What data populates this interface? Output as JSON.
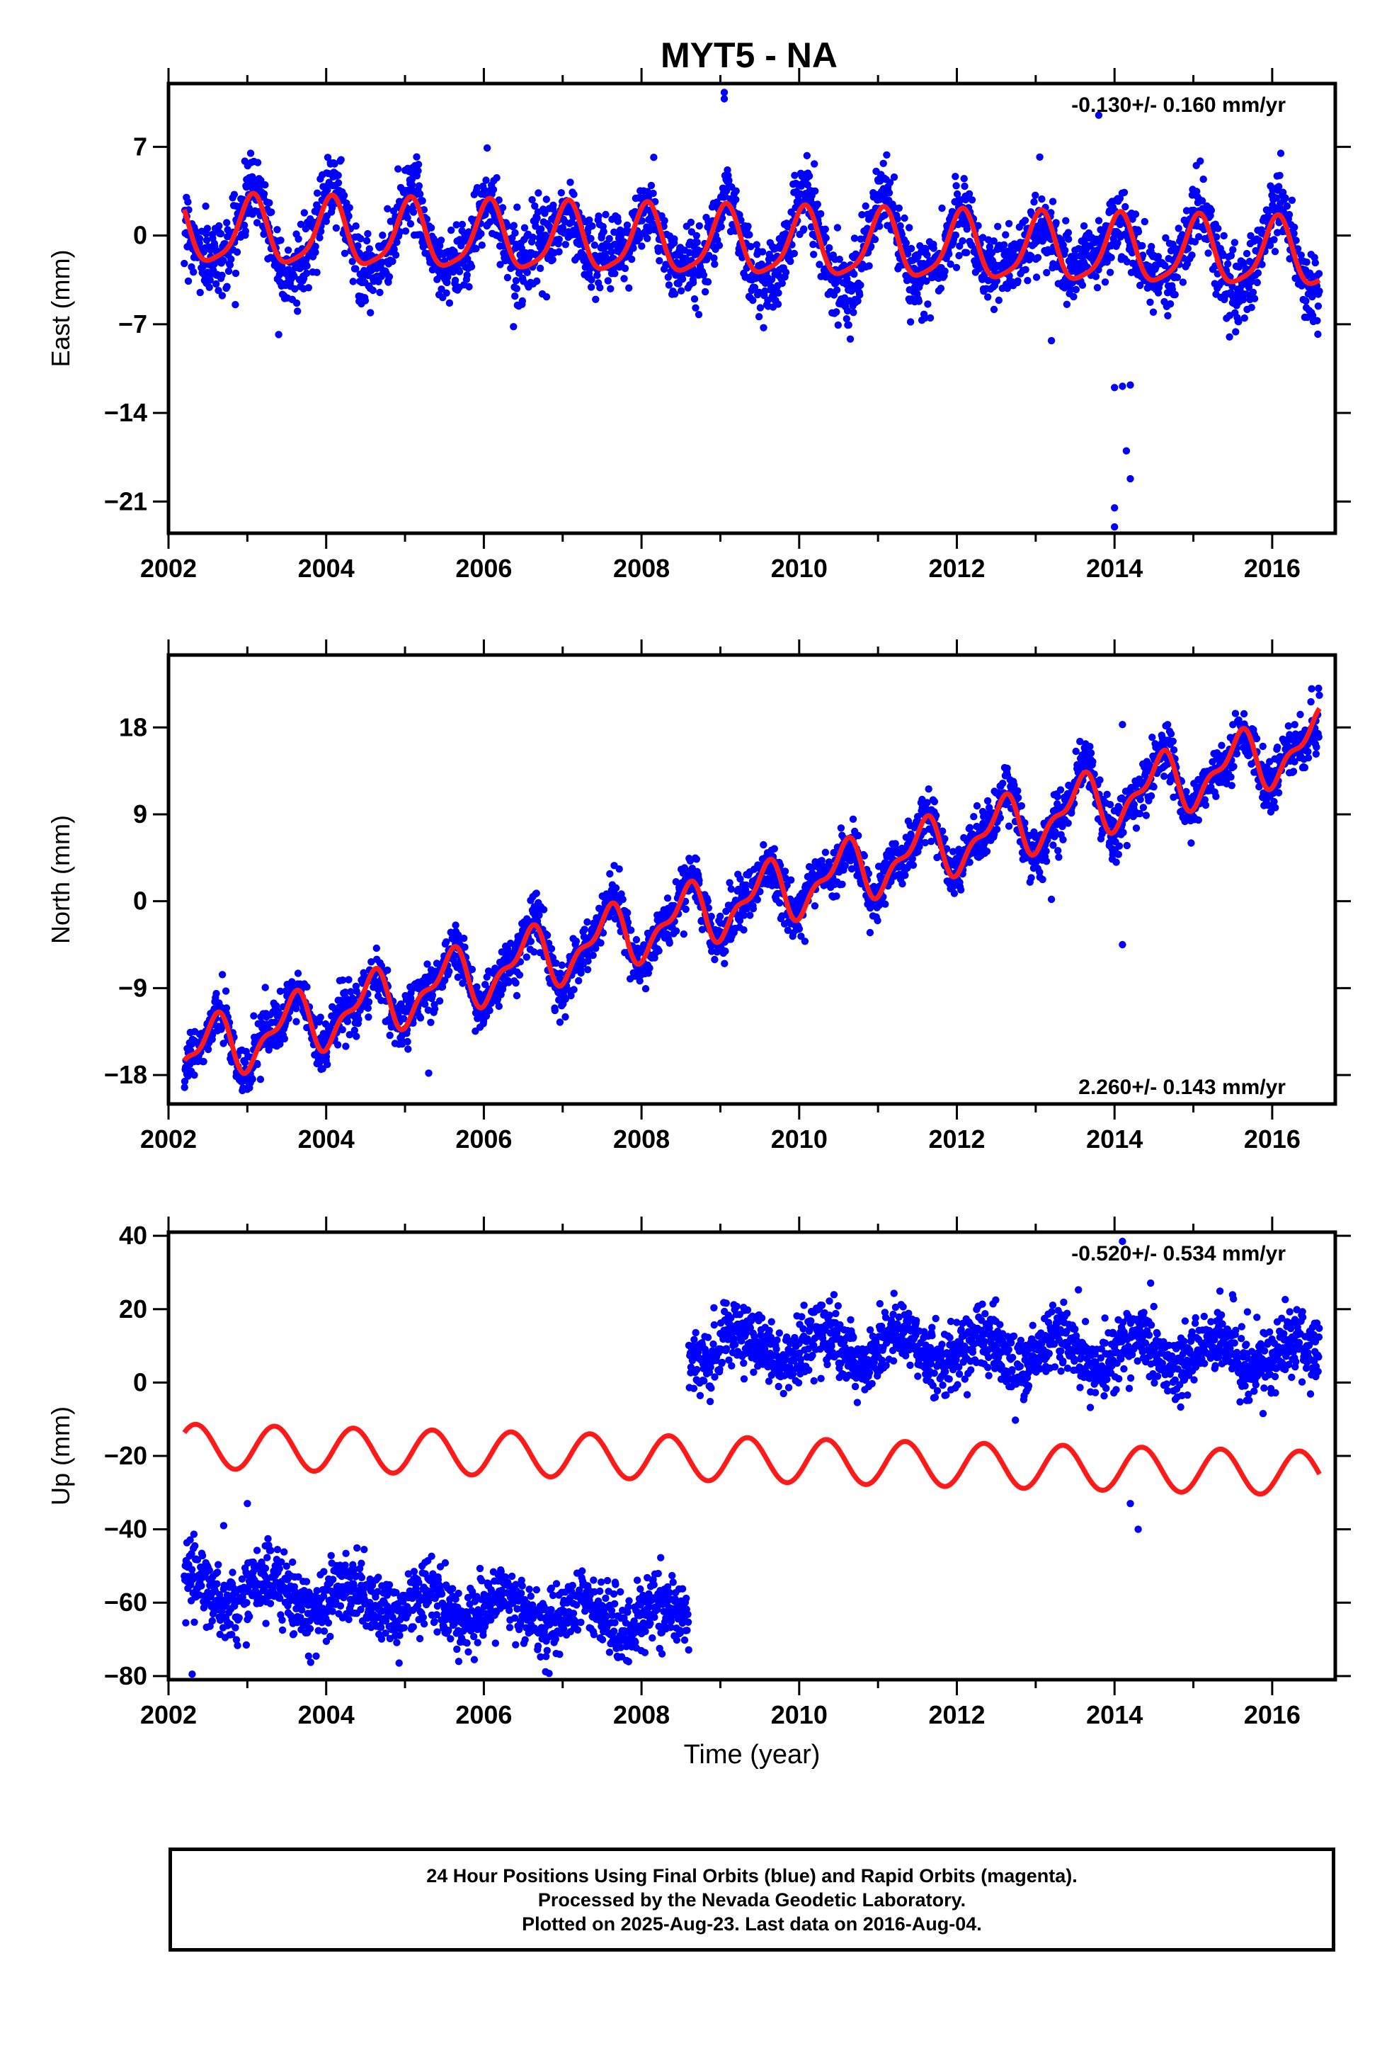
{
  "title": "MYT5 - NA",
  "footer": {
    "line1": "24 Hour Positions Using Final Orbits (blue) and Rapid Orbits (magenta).",
    "line2": "Processed by the Nevada Geodetic Laboratory.",
    "line3": "Plotted on 2025-Aug-23. Last data on 2016-Aug-04."
  },
  "colors": {
    "data": "#0000ff",
    "model": "#ff1a1a",
    "frame": "#000000"
  },
  "chart_data": [
    {
      "type": "scatter",
      "ylabel": "East (mm)",
      "xlabel": "",
      "rate_text": "-0.130+/- 0.160 mm/yr",
      "xlim": [
        2002.0,
        2016.8
      ],
      "ylim": [
        -23.5,
        12.0
      ],
      "yticks": [
        7,
        0,
        -7,
        -14,
        -21
      ],
      "ytick_labels": [
        "7",
        "0",
        "−7",
        "−14",
        "−21"
      ],
      "xticks": [
        2002,
        2004,
        2006,
        2008,
        2010,
        2012,
        2014,
        2016
      ],
      "xtick_labels": [
        "2002",
        "2004",
        "2006",
        "2008",
        "2010",
        "2012",
        "2014",
        "2016"
      ],
      "data_range": [
        2002.2,
        2016.6
      ],
      "model": {
        "offset": 0.3,
        "rate": -0.13,
        "amp_annual": 2.6,
        "phase_annual": 1.2,
        "amp_semi": 0.6,
        "phase_semi": 0.4,
        "amp_growth": 0.08
      },
      "scatter": {
        "noise": 1.4,
        "extra_amp": 1.2
      },
      "outliers": [
        [
          2009.05,
          10.8
        ],
        [
          2009.05,
          11.3
        ],
        [
          2013.8,
          9.5
        ],
        [
          2013.2,
          -8.3
        ],
        [
          2014.0,
          -12.0
        ],
        [
          2014.1,
          -11.9
        ],
        [
          2014.2,
          -11.8
        ],
        [
          2014.15,
          -17.0
        ],
        [
          2014.2,
          -19.2
        ],
        [
          2014.0,
          -21.5
        ],
        [
          2014.0,
          -23.0
        ]
      ],
      "series": [
        {
          "name": "Final Orbits",
          "role": "data"
        },
        {
          "name": "Model",
          "role": "model"
        }
      ]
    },
    {
      "type": "scatter",
      "ylabel": "North (mm)",
      "xlabel": "",
      "rate_text": "2.260+/- 0.143 mm/yr",
      "xlim": [
        2002.0,
        2016.8
      ],
      "ylim": [
        -21.0,
        25.5
      ],
      "yticks": [
        18,
        9,
        0,
        -9,
        -18
      ],
      "ytick_labels": [
        "18",
        "9",
        "0",
        "−9",
        "−18"
      ],
      "xticks": [
        2002,
        2004,
        2006,
        2008,
        2010,
        2012,
        2014,
        2016
      ],
      "xtick_labels": [
        "2002",
        "2004",
        "2006",
        "2008",
        "2010",
        "2012",
        "2014",
        "2016"
      ],
      "data_range": [
        2002.2,
        2016.6
      ],
      "model": {
        "offset": -16.5,
        "rate": 2.26,
        "amp_annual": 2.8,
        "phase_annual": -1.9,
        "amp_semi": 1.3,
        "phase_semi": -0.6,
        "amp_growth": 0.05
      },
      "scatter": {
        "noise": 1.3,
        "extra_amp": 0.8
      },
      "outliers": [
        [
          2005.3,
          -17.8
        ],
        [
          2013.2,
          0.2
        ],
        [
          2014.1,
          -4.5
        ],
        [
          2014.1,
          18.3
        ],
        [
          2016.5,
          22.0
        ]
      ],
      "series": [
        {
          "name": "Final Orbits",
          "role": "data"
        },
        {
          "name": "Model",
          "role": "model"
        }
      ]
    },
    {
      "type": "scatter",
      "ylabel": "Up (mm)",
      "xlabel": "Time (year)",
      "rate_text": "-0.520+/- 0.534 mm/yr",
      "xlim": [
        2002.0,
        2016.8
      ],
      "ylim": [
        -81.0,
        41.0
      ],
      "yticks": [
        40,
        20,
        0,
        -20,
        -40,
        -60,
        -80
      ],
      "ytick_labels": [
        "40",
        "20",
        "0",
        "−20",
        "−40",
        "−60",
        "−80"
      ],
      "xticks": [
        2002,
        2004,
        2006,
        2008,
        2010,
        2012,
        2014,
        2016
      ],
      "xtick_labels": [
        "2002",
        "2004",
        "2006",
        "2008",
        "2010",
        "2012",
        "2014",
        "2016"
      ],
      "data_segments": [
        {
          "range": [
            2002.2,
            2008.6
          ],
          "offset": -56.0,
          "trend": -1.4
        },
        {
          "range": [
            2008.6,
            2016.6
          ],
          "offset": 10.0,
          "trend": -0.3
        }
      ],
      "model": {
        "offset": -17.2,
        "rate": -0.52,
        "amp_annual": 6.0,
        "phase_annual": -0.6,
        "amp_semi": 0.0,
        "phase_semi": 0.0,
        "amp_growth": 0.0
      },
      "scatter": {
        "noise": 4.5,
        "extra_amp": 3.0
      },
      "outliers": [
        [
          2002.3,
          -79.5
        ],
        [
          2002.7,
          -39.0
        ],
        [
          2003.0,
          -33.0
        ],
        [
          2014.1,
          38.5
        ],
        [
          2014.2,
          -33.0
        ],
        [
          2014.3,
          -40.0
        ]
      ],
      "series": [
        {
          "name": "Final Orbits",
          "role": "data"
        },
        {
          "name": "Model",
          "role": "model"
        }
      ]
    }
  ]
}
